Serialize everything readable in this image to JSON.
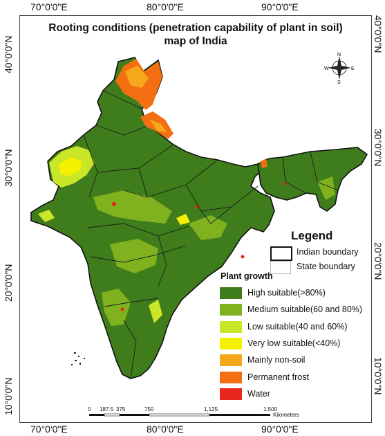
{
  "ticks": {
    "top": [
      "70°0'0\"E",
      "80°0'0\"E",
      "90°0'0\"E"
    ],
    "bottom": [
      "70°0'0\"E",
      "80°0'0\"E",
      "90°0'0\"E"
    ],
    "left": [
      "40°0'0\"N",
      "30°0'0\"N",
      "20°0'0\"N",
      "10°0'0\"N"
    ],
    "right": [
      "40°0'0\"N",
      "30°0'0\"N",
      "20°0'0\"N",
      "10°0'0\"N"
    ]
  },
  "title": {
    "line1": "Rooting conditions (penetration capability of plant in soil)",
    "line2": "map of India"
  },
  "compass": {
    "n": "N",
    "s": "S",
    "e": "E",
    "w": "W"
  },
  "legend": {
    "title": "Legend",
    "indian_boundary": "Indian boundary",
    "state_boundary": "State boundary",
    "plant_growth_title": "Plant growth",
    "classes": [
      {
        "label": "High suitable(>80%)",
        "color": "#3f7d1c"
      },
      {
        "label": "Medium suitable(60 and 80%)",
        "color": "#7fb21e"
      },
      {
        "label": "Low suitable(40 and 60%)",
        "color": "#c9e629"
      },
      {
        "label": "Very low suitable(<40%)",
        "color": "#f4f000"
      },
      {
        "label": "Mainly non-soil",
        "color": "#f6a81c"
      },
      {
        "label": "Permanent frost",
        "color": "#f46f12"
      },
      {
        "label": "Water",
        "color": "#e8261c"
      }
    ]
  },
  "scale": {
    "ticks": [
      "0",
      "187.5",
      "375",
      "750",
      "1,125",
      "1,500"
    ],
    "unit": "Kilometers"
  },
  "colors": {
    "boundary": "#111111",
    "state_line": "#1a1a1a"
  }
}
